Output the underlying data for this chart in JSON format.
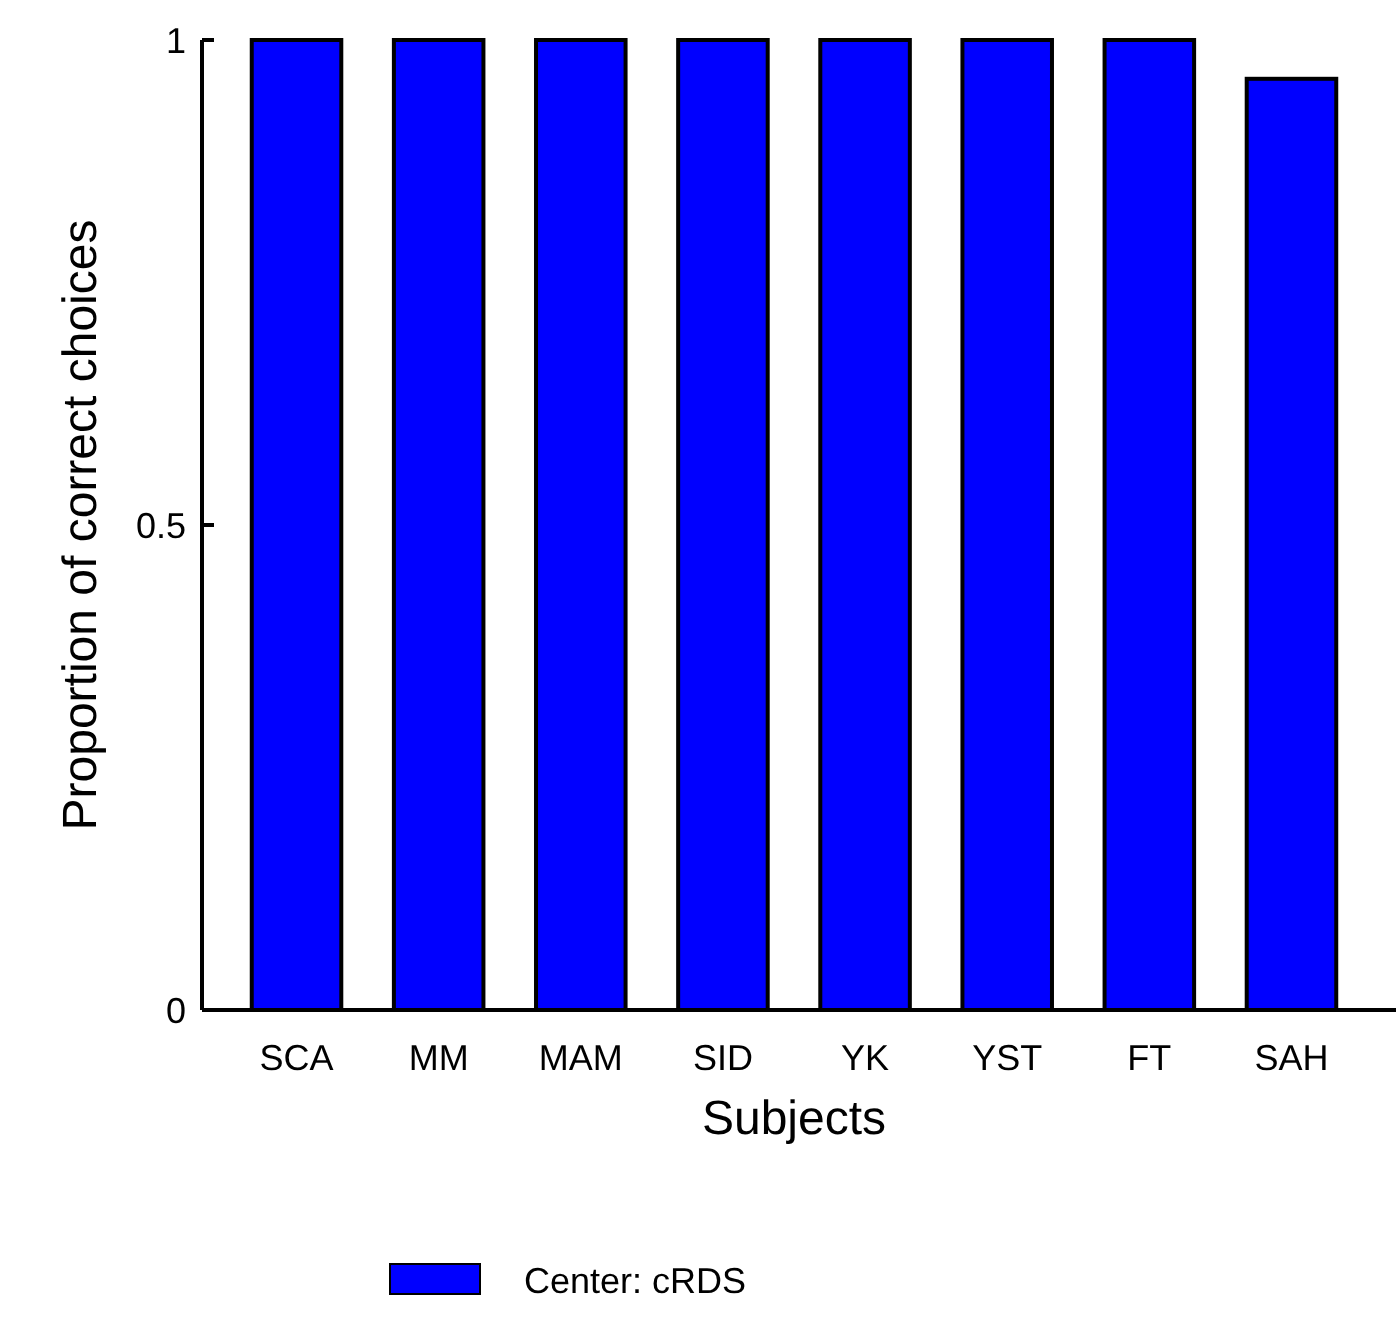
{
  "chart_data": {
    "type": "bar",
    "xlabel": "Subjects",
    "ylabel": "Proportion of correct choices",
    "categories": [
      "SCA",
      "MM",
      "MAM",
      "SID",
      "YK",
      "YST",
      "FT",
      "SAH"
    ],
    "series": [
      {
        "name": "Center: cRDS",
        "color": "#0000ff",
        "values": [
          1,
          1,
          1,
          1,
          1,
          1,
          1,
          0.96
        ]
      }
    ],
    "ylim": [
      0,
      1
    ],
    "yticks": [
      0,
      0.5,
      1
    ],
    "grid": false,
    "legend": "bottom"
  }
}
